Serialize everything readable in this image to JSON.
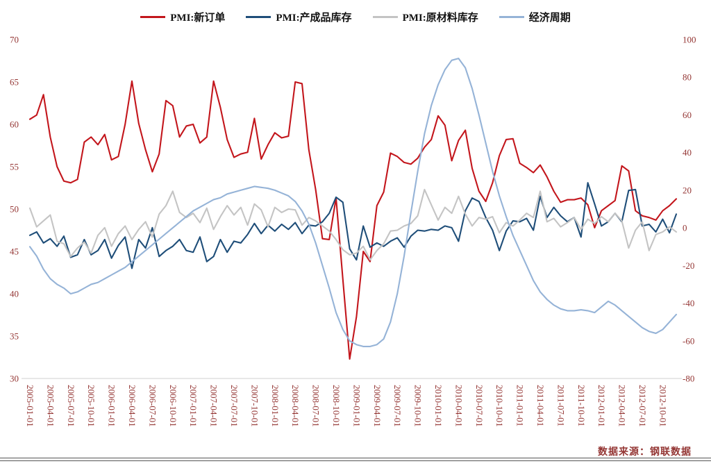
{
  "footer": {
    "source_label": "数据来源：钢联数据"
  },
  "chart_data": {
    "type": "line",
    "title": "",
    "grid": false,
    "legend_position": "top",
    "x_axis": {
      "start": "2005-01",
      "frequency": "monthly",
      "points": 96,
      "tick_labels": [
        "2005-01-01",
        "2005-04-01",
        "2005-07-01",
        "2005-10-01",
        "2006-01-01",
        "2006-04-01",
        "2006-07-01",
        "2006-10-01",
        "2007-01-01",
        "2007-04-01",
        "2007-07-01",
        "2007-10-01",
        "2008-01-01",
        "2008-04-01",
        "2008-07-01",
        "2008-10-01",
        "2009-01-01",
        "2009-04-01",
        "2009-07-01",
        "2009-10-01",
        "2010-01-01",
        "2010-04-01",
        "2010-07-01",
        "2010-10-01",
        "2011-01-01",
        "2011-04-01",
        "2011-07-01",
        "2011-10-01",
        "2012-01-01",
        "2012-04-01",
        "2012-07-01",
        "2012-10-01"
      ]
    },
    "left_axis": {
      "min": 30,
      "max": 70,
      "ticks": [
        70,
        65,
        60,
        55,
        50,
        45,
        40,
        35,
        30
      ]
    },
    "right_axis": {
      "min": -80,
      "max": 100,
      "ticks": [
        100,
        80,
        60,
        40,
        20,
        0,
        -20,
        -40,
        -60,
        -80
      ]
    },
    "series": [
      {
        "name": "PMI:新订单",
        "color": "#c3161c",
        "axis": "left",
        "values": [
          60.6,
          61.1,
          63.5,
          58.5,
          55.0,
          53.3,
          53.1,
          53.5,
          57.9,
          58.5,
          57.6,
          58.8,
          55.8,
          56.2,
          60.0,
          65.1,
          60.1,
          57.0,
          54.4,
          56.5,
          62.8,
          62.2,
          58.5,
          59.8,
          60.0,
          57.8,
          58.5,
          65.1,
          62.0,
          58.2,
          56.1,
          56.5,
          56.7,
          60.7,
          55.9,
          57.6,
          59.0,
          58.4,
          58.6,
          65.0,
          64.8,
          57.0,
          52.3,
          46.5,
          46.4,
          51.3,
          41.7,
          32.3,
          37.3,
          45.0,
          43.8,
          50.4,
          52.0,
          56.6,
          56.2,
          55.5,
          55.3,
          56.0,
          57.3,
          58.2,
          61.0,
          59.9,
          55.7,
          58.1,
          59.3,
          54.8,
          52.1,
          50.9,
          53.1,
          56.3,
          58.2,
          58.3,
          55.4,
          54.9,
          54.3,
          55.2,
          53.8,
          52.1,
          50.8,
          51.1,
          51.1,
          51.3,
          50.5,
          47.8,
          49.8,
          50.4,
          51.0,
          55.1,
          54.5,
          49.8,
          49.2,
          49.0,
          48.7,
          49.8,
          50.4,
          51.2
        ]
      },
      {
        "name": "PMI:产成品库存",
        "color": "#1f4e79",
        "axis": "left",
        "values": [
          46.9,
          47.3,
          46.0,
          46.5,
          45.6,
          46.8,
          44.3,
          44.6,
          46.4,
          44.6,
          45.1,
          46.4,
          44.2,
          45.7,
          46.7,
          43.0,
          46.4,
          45.4,
          47.8,
          44.4,
          45.1,
          45.6,
          46.4,
          45.1,
          44.9,
          46.7,
          43.8,
          44.4,
          46.4,
          44.9,
          46.2,
          46.0,
          47.0,
          48.3,
          47.1,
          48.1,
          47.4,
          48.2,
          47.6,
          48.4,
          47.1,
          48.1,
          48.0,
          48.5,
          49.5,
          51.4,
          50.8,
          45.3,
          44.0,
          48.0,
          45.5,
          46.0,
          45.6,
          46.2,
          46.6,
          45.5,
          46.8,
          47.5,
          47.4,
          47.6,
          47.5,
          48.0,
          47.8,
          46.2,
          49.8,
          51.3,
          50.9,
          49.0,
          47.5,
          45.1,
          47.4,
          48.6,
          48.5,
          48.9,
          47.5,
          51.5,
          49.0,
          50.2,
          49.2,
          48.5,
          49.0,
          46.7,
          53.1,
          50.6,
          48.0,
          48.5,
          49.5,
          48.5,
          52.2,
          52.3,
          48.0,
          48.2,
          47.3,
          48.8,
          47.2,
          49.4
        ]
      },
      {
        "name": "PMI:原材料库存",
        "color": "#c4c4c4",
        "axis": "left",
        "values": [
          50.1,
          47.9,
          48.6,
          49.3,
          46.2,
          45.9,
          44.4,
          45.4,
          46.1,
          44.8,
          46.9,
          47.8,
          45.6,
          47.1,
          48.0,
          46.4,
          47.6,
          48.5,
          46.7,
          49.4,
          50.4,
          52.1,
          49.6,
          49.0,
          49.5,
          48.4,
          50.1,
          47.6,
          49.1,
          50.4,
          49.3,
          50.2,
          48.1,
          50.6,
          49.9,
          47.9,
          50.2,
          49.6,
          50.0,
          49.9,
          48.1,
          49.0,
          48.6,
          48.0,
          47.4,
          46.4,
          45.2,
          44.6,
          44.8,
          45.6,
          44.0,
          45.1,
          45.9,
          47.4,
          47.5,
          48.0,
          48.3,
          49.2,
          52.3,
          50.5,
          48.7,
          50.2,
          49.5,
          51.5,
          49.4,
          48.0,
          49.0,
          48.8,
          49.1,
          47.2,
          48.4,
          48.0,
          48.7,
          49.5,
          49.0,
          52.1,
          48.5,
          48.9,
          47.9,
          48.4,
          49.0,
          47.6,
          48.8,
          48.3,
          49.1,
          48.5,
          49.5,
          48.6,
          45.4,
          47.5,
          48.5,
          45.1,
          47.0,
          47.3,
          47.9,
          47.3
        ]
      },
      {
        "name": "经济周期",
        "color": "#95b3d7",
        "axis": "right",
        "values": [
          -10,
          -15,
          -22,
          -27,
          -30,
          -32,
          -35,
          -34,
          -32,
          -30,
          -29,
          -27,
          -25,
          -23,
          -21,
          -18,
          -15,
          -12,
          -9,
          -6,
          -3,
          0,
          3,
          6,
          9,
          11,
          13,
          15,
          16,
          18,
          19,
          20,
          21,
          22,
          21.5,
          21,
          20,
          18.5,
          17,
          14,
          9,
          2,
          -8,
          -20,
          -32,
          -45,
          -54,
          -60,
          -62,
          -63,
          -63,
          -62,
          -59,
          -50,
          -35,
          -15,
          8,
          30,
          50,
          65,
          76,
          84,
          89,
          90,
          85,
          74,
          60,
          45,
          30,
          17,
          6,
          -4,
          -12,
          -20,
          -28,
          -34,
          -38,
          -41,
          -43,
          -44,
          -44,
          -43.5,
          -44,
          -45,
          -42,
          -39,
          -41,
          -44,
          -47,
          -50,
          -53,
          -55,
          -56,
          -54,
          -50,
          -46
        ]
      }
    ]
  }
}
